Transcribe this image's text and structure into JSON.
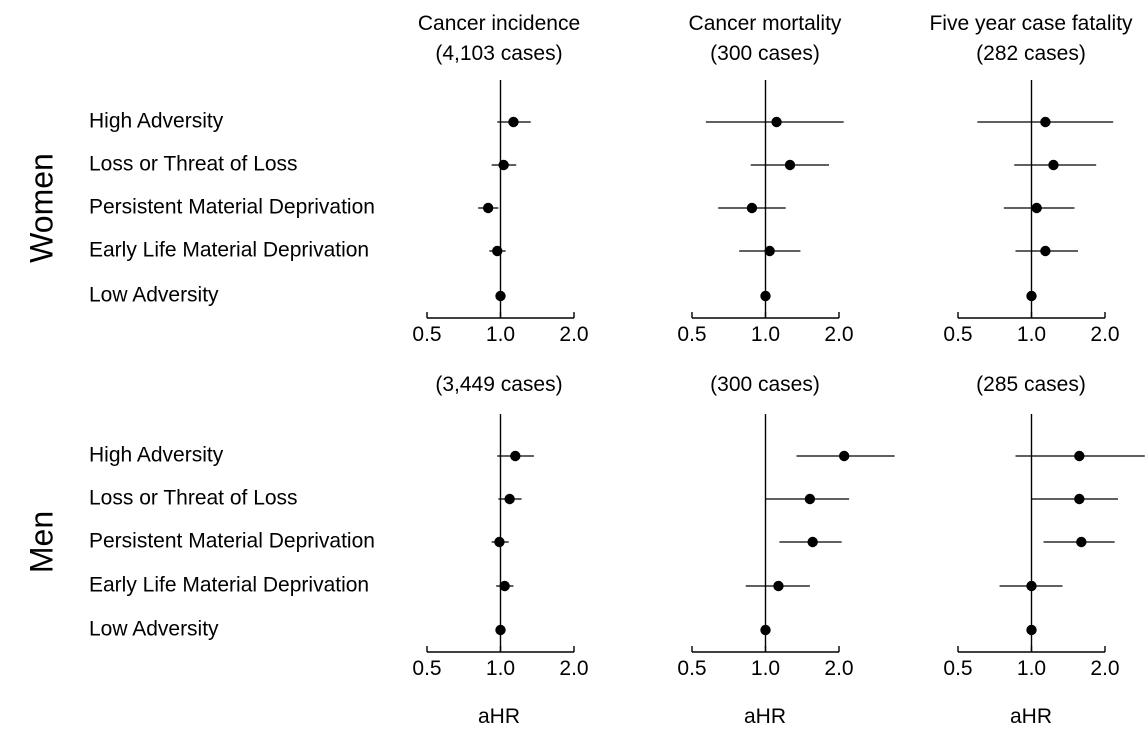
{
  "chart_data": {
    "type": "forest",
    "scale": "log",
    "reference": 1.0,
    "xlim": [
      0.5,
      2.0
    ],
    "xticks": [
      0.5,
      1.0,
      2.0
    ],
    "xtick_labels": [
      "0.5",
      "1.0",
      "2.0"
    ],
    "xlabel": "aHR",
    "categories": [
      "High Adversity",
      "Loss or Threat of Loss",
      "Persistent Material Deprivation",
      "Early Life Material Deprivation",
      "Low Adversity"
    ],
    "columns": [
      {
        "title": "Cancer incidence"
      },
      {
        "title": "Cancer mortality"
      },
      {
        "title": "Five year case fatality"
      }
    ],
    "groups": [
      {
        "name": "Women",
        "panels": [
          {
            "subtitle": "(4,103 cases)",
            "points": [
              {
                "est": 1.13,
                "lo": 0.97,
                "hi": 1.33
              },
              {
                "est": 1.03,
                "lo": 0.92,
                "hi": 1.16
              },
              {
                "est": 0.89,
                "lo": 0.81,
                "hi": 0.98
              },
              {
                "est": 0.97,
                "lo": 0.9,
                "hi": 1.05
              },
              {
                "est": 1.0,
                "lo": null,
                "hi": null
              }
            ]
          },
          {
            "subtitle": "(300 cases)",
            "points": [
              {
                "est": 1.11,
                "lo": 0.57,
                "hi": 2.09
              },
              {
                "est": 1.26,
                "lo": 0.87,
                "hi": 1.82
              },
              {
                "est": 0.88,
                "lo": 0.64,
                "hi": 1.21
              },
              {
                "est": 1.04,
                "lo": 0.78,
                "hi": 1.39
              },
              {
                "est": 1.0,
                "lo": null,
                "hi": null
              }
            ]
          },
          {
            "subtitle": "(282 cases)",
            "points": [
              {
                "est": 1.14,
                "lo": 0.6,
                "hi": 2.16
              },
              {
                "est": 1.23,
                "lo": 0.85,
                "hi": 1.84
              },
              {
                "est": 1.05,
                "lo": 0.77,
                "hi": 1.5
              },
              {
                "est": 1.14,
                "lo": 0.86,
                "hi": 1.55
              },
              {
                "est": 1.0,
                "lo": null,
                "hi": null
              }
            ]
          }
        ]
      },
      {
        "name": "Men",
        "panels": [
          {
            "subtitle": "(3,449 cases)",
            "points": [
              {
                "est": 1.15,
                "lo": 0.97,
                "hi": 1.37
              },
              {
                "est": 1.09,
                "lo": 0.98,
                "hi": 1.22
              },
              {
                "est": 0.99,
                "lo": 0.92,
                "hi": 1.08
              },
              {
                "est": 1.04,
                "lo": 0.96,
                "hi": 1.13
              },
              {
                "est": 1.0,
                "lo": null,
                "hi": null
              }
            ]
          },
          {
            "subtitle": "(300 cases)",
            "points": [
              {
                "est": 2.1,
                "lo": 1.34,
                "hi": 3.38
              },
              {
                "est": 1.52,
                "lo": 1.0,
                "hi": 2.2
              },
              {
                "est": 1.56,
                "lo": 1.14,
                "hi": 2.05
              },
              {
                "est": 1.13,
                "lo": 0.83,
                "hi": 1.52
              },
              {
                "est": 1.0,
                "lo": null,
                "hi": null
              }
            ]
          },
          {
            "subtitle": "(285 cases)",
            "points": [
              {
                "est": 1.57,
                "lo": 0.86,
                "hi": 2.91
              },
              {
                "est": 1.57,
                "lo": 1.0,
                "hi": 2.26
              },
              {
                "est": 1.6,
                "lo": 1.12,
                "hi": 2.19
              },
              {
                "est": 1.0,
                "lo": 0.74,
                "hi": 1.34
              },
              {
                "est": 1.0,
                "lo": null,
                "hi": null
              }
            ]
          }
        ]
      }
    ]
  }
}
